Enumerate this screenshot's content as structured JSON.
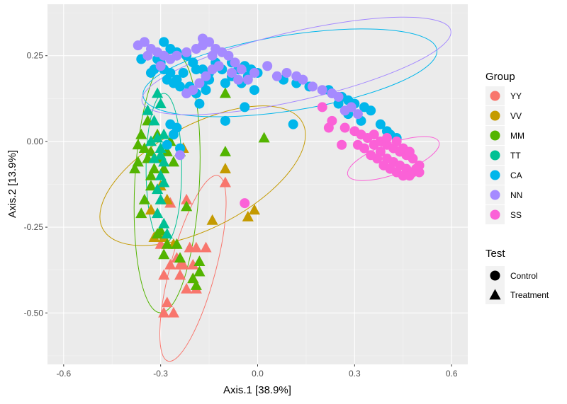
{
  "chart_data": {
    "type": "scatter",
    "xlabel": "Axis.1   [38.9%]",
    "ylabel": "Axis.2   [13.9%]",
    "xlim": [
      -0.65,
      0.65
    ],
    "ylim": [
      -0.65,
      0.4
    ],
    "x_ticks": [
      -0.6,
      -0.3,
      0.0,
      0.3,
      0.6
    ],
    "x_tick_labels": [
      "-0.6",
      "-0.3",
      "0.0",
      "0.3",
      "0.6"
    ],
    "y_ticks": [
      -0.5,
      -0.25,
      0.0,
      0.25
    ],
    "y_tick_labels": [
      "-0.50",
      "-0.25",
      "0.00",
      "0.25"
    ],
    "grid": true,
    "legend_position": "right",
    "colour_legend": {
      "title": "Group",
      "entries": [
        {
          "label": "YY",
          "color": "#F8766D"
        },
        {
          "label": "VV",
          "color": "#C49A00"
        },
        {
          "label": "MM",
          "color": "#53B400"
        },
        {
          "label": "TT",
          "color": "#00C094"
        },
        {
          "label": "CA",
          "color": "#00B6EB"
        },
        {
          "label": "NN",
          "color": "#A58AFF"
        },
        {
          "label": "SS",
          "color": "#FB61D7"
        }
      ]
    },
    "shape_legend": {
      "title": "Test",
      "entries": [
        {
          "label": "Control",
          "shape": "circle"
        },
        {
          "label": "Treatment",
          "shape": "triangle"
        }
      ]
    },
    "ellipses": [
      {
        "group": "YY",
        "cx": -0.2,
        "cy": -0.37,
        "rx": 0.07,
        "ry": 0.28,
        "angle": 15
      },
      {
        "group": "VV",
        "cx": -0.17,
        "cy": -0.1,
        "rx": 0.35,
        "ry": 0.15,
        "angle": -28
      },
      {
        "group": "MM",
        "cx": -0.28,
        "cy": -0.12,
        "rx": 0.1,
        "ry": 0.38,
        "angle": 3
      },
      {
        "group": "TT",
        "cx": -0.29,
        "cy": -0.08,
        "rx": 0.055,
        "ry": 0.22,
        "angle": 0
      },
      {
        "group": "CA",
        "cx": 0.1,
        "cy": 0.2,
        "rx": 0.46,
        "ry": 0.11,
        "angle": -9
      },
      {
        "group": "NN",
        "cx": 0.12,
        "cy": 0.22,
        "rx": 0.49,
        "ry": 0.1,
        "angle": -13
      },
      {
        "group": "SS",
        "cx": 0.42,
        "cy": -0.05,
        "rx": 0.15,
        "ry": 0.045,
        "angle": -20
      }
    ],
    "series": [
      {
        "group": "YY",
        "test": "Treatment",
        "points": [
          [
            -0.3,
            -0.3
          ],
          [
            -0.27,
            -0.36
          ],
          [
            -0.25,
            -0.34
          ],
          [
            -0.23,
            -0.36
          ],
          [
            -0.21,
            -0.31
          ],
          [
            -0.19,
            -0.31
          ],
          [
            -0.2,
            -0.4
          ],
          [
            -0.22,
            -0.43
          ],
          [
            -0.29,
            -0.39
          ],
          [
            -0.28,
            -0.47
          ],
          [
            -0.26,
            -0.5
          ],
          [
            -0.29,
            -0.5
          ],
          [
            -0.2,
            -0.4
          ],
          [
            -0.24,
            -0.39
          ],
          [
            -0.16,
            -0.31
          ],
          [
            -0.2,
            -0.36
          ],
          [
            -0.1,
            -0.12
          ],
          [
            -0.19,
            -0.43
          ],
          [
            -0.22,
            -0.17
          ],
          [
            -0.24,
            -0.36
          ],
          [
            -0.3,
            -0.27
          ],
          [
            -0.27,
            -0.18
          ],
          [
            -0.3,
            -0.27
          ]
        ]
      },
      {
        "group": "VV",
        "test": "Treatment",
        "points": [
          [
            -0.32,
            -0.05
          ],
          [
            -0.3,
            -0.13
          ],
          [
            -0.33,
            -0.2
          ],
          [
            -0.29,
            -0.28
          ],
          [
            -0.26,
            -0.3
          ],
          [
            -0.23,
            -0.02
          ],
          [
            -0.03,
            -0.22
          ],
          [
            -0.01,
            -0.2
          ],
          [
            -0.14,
            -0.23
          ],
          [
            -0.1,
            -0.08
          ],
          [
            -0.32,
            -0.28
          ],
          [
            -0.28,
            -0.17
          ]
        ]
      },
      {
        "group": "MM",
        "test": "Treatment",
        "points": [
          [
            -0.38,
            -0.08
          ],
          [
            -0.37,
            -0.06
          ],
          [
            -0.37,
            -0.01
          ],
          [
            -0.36,
            0.02
          ],
          [
            -0.34,
            0.06
          ],
          [
            -0.35,
            -0.02
          ],
          [
            -0.34,
            -0.05
          ],
          [
            -0.33,
            -0.1
          ],
          [
            -0.32,
            -0.08
          ],
          [
            -0.31,
            0.02
          ],
          [
            -0.3,
            -0.05
          ],
          [
            -0.29,
            -0.08
          ],
          [
            -0.28,
            -0.03
          ],
          [
            -0.27,
            0.0
          ],
          [
            -0.26,
            -0.06
          ],
          [
            -0.33,
            -0.13
          ],
          [
            -0.35,
            -0.17
          ],
          [
            -0.36,
            -0.21
          ],
          [
            -0.3,
            -0.26
          ],
          [
            -0.29,
            -0.33
          ],
          [
            -0.28,
            -0.3
          ],
          [
            -0.24,
            -0.03
          ],
          [
            -0.18,
            -0.35
          ],
          [
            -0.18,
            -0.38
          ],
          [
            -0.19,
            -0.42
          ],
          [
            -0.2,
            -0.4
          ],
          [
            -0.1,
            -0.03
          ],
          [
            -0.1,
            0.14
          ],
          [
            0.02,
            0.01
          ],
          [
            -0.25,
            -0.3
          ],
          [
            -0.24,
            -0.34
          ],
          [
            -0.33,
            -0.03
          ],
          [
            -0.31,
            -0.27
          ],
          [
            -0.22,
            -0.19
          ]
        ]
      },
      {
        "group": "TT",
        "test": "Treatment",
        "points": [
          [
            -0.34,
            0.09
          ],
          [
            -0.32,
            0.06
          ],
          [
            -0.31,
            0.01
          ],
          [
            -0.3,
            -0.02
          ],
          [
            -0.29,
            -0.06
          ],
          [
            -0.3,
            -0.1
          ],
          [
            -0.31,
            -0.14
          ],
          [
            -0.3,
            -0.17
          ],
          [
            -0.31,
            -0.21
          ],
          [
            -0.29,
            -0.24
          ],
          [
            -0.28,
            -0.27
          ],
          [
            -0.31,
            0.14
          ],
          [
            -0.3,
            0.11
          ],
          [
            -0.29,
            0.02
          ],
          [
            -0.3,
            -0.04
          ],
          [
            -0.33,
            0.0
          ],
          [
            -0.32,
            -0.05
          ],
          [
            -0.29,
            -0.12
          ]
        ]
      },
      {
        "group": "CA",
        "test": "Control",
        "points": [
          [
            -0.29,
            0.29
          ],
          [
            -0.27,
            0.27
          ],
          [
            -0.25,
            0.26
          ],
          [
            -0.22,
            0.25
          ],
          [
            -0.2,
            0.23
          ],
          [
            -0.19,
            0.21
          ],
          [
            -0.17,
            0.21
          ],
          [
            -0.15,
            0.2
          ],
          [
            -0.13,
            0.23
          ],
          [
            -0.11,
            0.21
          ],
          [
            -0.08,
            0.23
          ],
          [
            -0.06,
            0.21
          ],
          [
            -0.04,
            0.22
          ],
          [
            -0.02,
            0.21
          ],
          [
            0.0,
            0.2
          ],
          [
            -0.03,
            0.19
          ],
          [
            -0.01,
            0.15
          ],
          [
            -0.05,
            0.17
          ],
          [
            -0.08,
            0.19
          ],
          [
            -0.1,
            0.17
          ],
          [
            -0.15,
            0.18
          ],
          [
            -0.17,
            0.17
          ],
          [
            -0.19,
            0.14
          ],
          [
            -0.21,
            0.16
          ],
          [
            -0.23,
            0.2
          ],
          [
            -0.25,
            0.18
          ],
          [
            -0.27,
            0.2
          ],
          [
            -0.29,
            0.21
          ],
          [
            -0.3,
            0.23
          ],
          [
            -0.31,
            0.24
          ],
          [
            -0.32,
            0.21
          ],
          [
            -0.33,
            0.2
          ],
          [
            -0.28,
            0.18
          ],
          [
            -0.26,
            0.17
          ],
          [
            -0.24,
            0.16
          ],
          [
            -0.16,
            0.15
          ],
          [
            -0.18,
            0.11
          ],
          [
            -0.1,
            0.06
          ],
          [
            -0.04,
            0.1
          ],
          [
            0.08,
            0.18
          ],
          [
            0.11,
            0.05
          ],
          [
            0.12,
            0.17
          ],
          [
            0.16,
            0.16
          ],
          [
            0.22,
            0.15
          ],
          [
            0.26,
            0.13
          ],
          [
            0.28,
            0.12
          ],
          [
            0.3,
            0.11
          ],
          [
            0.33,
            0.1
          ],
          [
            0.35,
            0.09
          ],
          [
            0.38,
            0.05
          ],
          [
            0.4,
            0.03
          ],
          [
            0.41,
            0.02
          ],
          [
            0.43,
            0.01
          ],
          [
            0.32,
            0.06
          ],
          [
            0.28,
            0.08
          ],
          [
            0.25,
            0.11
          ],
          [
            -0.36,
            0.24
          ],
          [
            -0.25,
            0.04
          ],
          [
            -0.28,
            -0.01
          ],
          [
            -0.27,
            0.05
          ],
          [
            -0.26,
            0.02
          ],
          [
            -0.24,
            -0.02
          ]
        ]
      },
      {
        "group": "NN",
        "test": "Control",
        "points": [
          [
            -0.37,
            0.28
          ],
          [
            -0.35,
            0.29
          ],
          [
            -0.33,
            0.27
          ],
          [
            -0.31,
            0.26
          ],
          [
            -0.29,
            0.25
          ],
          [
            -0.27,
            0.24
          ],
          [
            -0.25,
            0.25
          ],
          [
            -0.22,
            0.26
          ],
          [
            -0.19,
            0.27
          ],
          [
            -0.17,
            0.3
          ],
          [
            -0.15,
            0.29
          ],
          [
            -0.13,
            0.27
          ],
          [
            -0.11,
            0.26
          ],
          [
            -0.09,
            0.25
          ],
          [
            -0.07,
            0.23
          ],
          [
            -0.05,
            0.21
          ],
          [
            -0.03,
            0.18
          ],
          [
            -0.01,
            0.2
          ],
          [
            -0.06,
            0.18
          ],
          [
            -0.08,
            0.2
          ],
          [
            -0.12,
            0.22
          ],
          [
            -0.14,
            0.21
          ],
          [
            -0.16,
            0.19
          ],
          [
            -0.18,
            0.17
          ],
          [
            -0.2,
            0.15
          ],
          [
            -0.22,
            0.14
          ],
          [
            0.03,
            0.22
          ],
          [
            0.06,
            0.19
          ],
          [
            0.09,
            0.2
          ],
          [
            0.12,
            0.19
          ],
          [
            0.14,
            0.18
          ],
          [
            0.17,
            0.16
          ],
          [
            0.2,
            0.15
          ],
          [
            0.23,
            0.14
          ],
          [
            0.25,
            0.13
          ],
          [
            0.27,
            0.09
          ],
          [
            0.29,
            0.1
          ],
          [
            0.31,
            0.08
          ],
          [
            -0.3,
            0.22
          ],
          [
            -0.17,
            0.28
          ],
          [
            -0.14,
            0.25
          ],
          [
            -0.24,
            -0.04
          ],
          [
            -0.34,
            0.25
          ]
        ]
      },
      {
        "group": "SS",
        "test": "Control",
        "points": [
          [
            0.2,
            0.1
          ],
          [
            0.23,
            0.06
          ],
          [
            0.27,
            0.04
          ],
          [
            0.3,
            0.03
          ],
          [
            0.32,
            0.02
          ],
          [
            0.34,
            0.01
          ],
          [
            0.36,
            -0.01
          ],
          [
            0.38,
            -0.03
          ],
          [
            0.4,
            -0.05
          ],
          [
            0.42,
            -0.06
          ],
          [
            0.44,
            -0.07
          ],
          [
            0.46,
            -0.08
          ],
          [
            0.48,
            -0.09
          ],
          [
            0.5,
            -0.09
          ],
          [
            0.36,
            0.02
          ],
          [
            0.38,
            0.0
          ],
          [
            0.4,
            -0.01
          ],
          [
            0.42,
            -0.02
          ],
          [
            0.44,
            -0.03
          ],
          [
            0.46,
            -0.04
          ],
          [
            0.48,
            -0.05
          ],
          [
            0.5,
            -0.07
          ],
          [
            0.37,
            -0.05
          ],
          [
            0.39,
            -0.07
          ],
          [
            0.41,
            -0.08
          ],
          [
            0.43,
            -0.09
          ],
          [
            0.45,
            -0.1
          ],
          [
            0.47,
            -0.1
          ],
          [
            0.49,
            -0.08
          ],
          [
            0.35,
            -0.04
          ],
          [
            0.33,
            -0.02
          ],
          [
            0.31,
            -0.01
          ],
          [
            0.26,
            -0.01
          ],
          [
            0.22,
            0.04
          ],
          [
            0.4,
            0.01
          ],
          [
            0.43,
            0.0
          ],
          [
            0.45,
            -0.02
          ],
          [
            0.47,
            -0.03
          ],
          [
            -0.04,
            -0.18
          ]
        ]
      }
    ]
  }
}
